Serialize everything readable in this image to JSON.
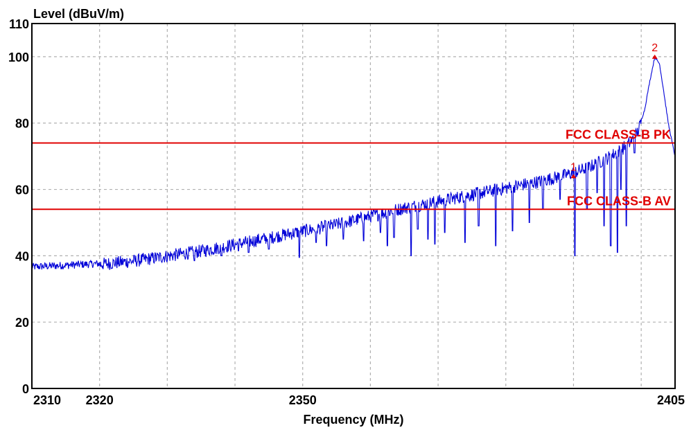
{
  "chart_data": {
    "type": "line",
    "ylabel": "Level (dBuV/m)",
    "xlabel": "Frequency (MHz)",
    "xlim": [
      2310,
      2405
    ],
    "ylim": [
      0,
      110
    ],
    "x_ticks": [
      2310,
      2320,
      2350,
      2405
    ],
    "y_ticks": [
      0,
      20,
      40,
      60,
      80,
      100,
      110
    ],
    "x_gridlines": [
      2320,
      2330,
      2340,
      2350,
      2360,
      2370,
      2380,
      2390,
      2400
    ],
    "y_gridlines": [
      20,
      40,
      60,
      80,
      100
    ],
    "grid": true,
    "colors": {
      "trace": "#0000d8",
      "limit": "#e00000",
      "marker": "#e00000",
      "grid": "#b0b0b0"
    },
    "limit_lines": [
      {
        "label": "FCC CLASS-B PK",
        "value": 74
      },
      {
        "label": "FCC CLASS-B AV",
        "value": 54
      }
    ],
    "markers": [
      {
        "label": "1",
        "x": 2390.0,
        "y": 64.0
      },
      {
        "label": "2",
        "x": 2402.0,
        "y": 100.0
      }
    ],
    "series": [
      {
        "envelope": [
          [
            2310.0,
            37.0
          ],
          [
            2315.0,
            37.5
          ],
          [
            2320.0,
            38.0
          ],
          [
            2325.0,
            39.0
          ],
          [
            2330.0,
            40.5
          ],
          [
            2335.0,
            42.0
          ],
          [
            2340.0,
            44.0
          ],
          [
            2345.0,
            46.0
          ],
          [
            2350.0,
            48.0
          ],
          [
            2355.0,
            50.0
          ],
          [
            2360.0,
            52.5
          ],
          [
            2365.0,
            55.0
          ],
          [
            2370.0,
            57.0
          ],
          [
            2375.0,
            59.0
          ],
          [
            2380.0,
            61.0
          ],
          [
            2385.0,
            63.0
          ],
          [
            2389.0,
            65.0
          ],
          [
            2392.0,
            67.0
          ],
          [
            2395.0,
            70.0
          ],
          [
            2397.0,
            72.5
          ],
          [
            2398.5,
            75.0
          ],
          [
            2399.5,
            78.0
          ],
          [
            2400.5,
            84.0
          ],
          [
            2401.2,
            92.0
          ],
          [
            2402.0,
            100.0
          ],
          [
            2402.7,
            98.0
          ],
          [
            2403.3,
            90.0
          ],
          [
            2404.0,
            80.0
          ],
          [
            2404.5,
            75.0
          ],
          [
            2405.0,
            70.0
          ]
        ],
        "dips": [
          [
            2334.0,
            38.5
          ],
          [
            2338.0,
            40.0
          ],
          [
            2340.5,
            41.5
          ],
          [
            2342.0,
            41.0
          ],
          [
            2345.0,
            42.0
          ],
          [
            2349.5,
            39.5
          ],
          [
            2352.0,
            44.0
          ],
          [
            2353.5,
            43.0
          ],
          [
            2356.0,
            45.0
          ],
          [
            2359.0,
            44.5
          ],
          [
            2361.5,
            47.0
          ],
          [
            2362.5,
            43.0
          ],
          [
            2363.5,
            45.5
          ],
          [
            2366.0,
            40.0
          ],
          [
            2367.0,
            48.0
          ],
          [
            2368.5,
            45.0
          ],
          [
            2369.5,
            43.5
          ],
          [
            2371.0,
            47.0
          ],
          [
            2374.0,
            44.0
          ],
          [
            2376.0,
            49.0
          ],
          [
            2378.5,
            43.0
          ],
          [
            2381.0,
            47.5
          ],
          [
            2383.5,
            50.0
          ],
          [
            2385.5,
            54.0
          ],
          [
            2388.0,
            57.0
          ],
          [
            2390.2,
            40.0
          ],
          [
            2392.0,
            54.0
          ],
          [
            2393.5,
            59.0
          ],
          [
            2394.5,
            49.0
          ],
          [
            2395.5,
            43.0
          ],
          [
            2396.5,
            41.0
          ],
          [
            2397.0,
            60.0
          ],
          [
            2397.8,
            49.0
          ],
          [
            2399.0,
            71.0
          ]
        ]
      }
    ]
  }
}
